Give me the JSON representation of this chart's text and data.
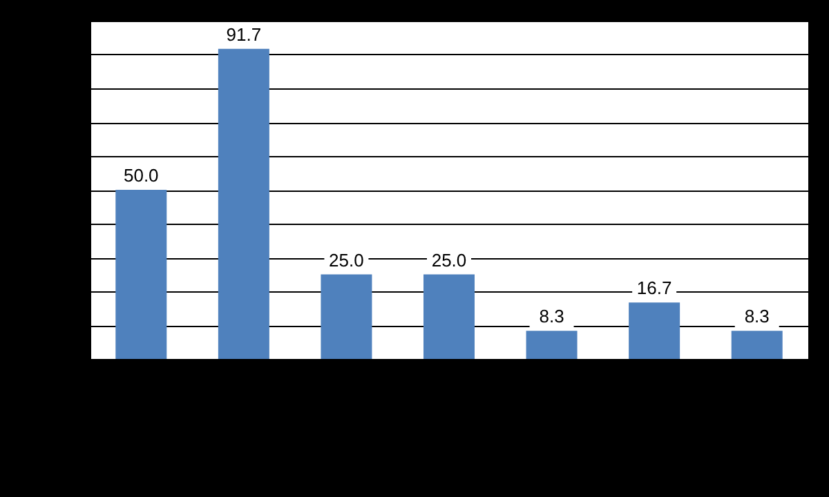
{
  "chart_data": {
    "type": "bar",
    "categories": [
      null,
      null,
      null,
      null,
      null,
      null,
      null
    ],
    "values": [
      50.0,
      91.7,
      25.0,
      25.0,
      8.3,
      16.7,
      8.3
    ],
    "value_labels": [
      "50.0",
      "91.7",
      "25.0",
      "25.0",
      "8.3",
      "16.7",
      "8.3"
    ],
    "color": "#4f81bd",
    "ylim": [
      0,
      100
    ],
    "yticks": [
      {
        "value": 0,
        "label": null
      },
      {
        "value": 10,
        "label": null
      },
      {
        "value": 20,
        "label": null
      },
      {
        "value": 30,
        "label": null
      },
      {
        "value": 40,
        "label": null
      },
      {
        "value": 50,
        "label": null
      },
      {
        "value": 60,
        "label": null
      },
      {
        "value": 70,
        "label": null
      },
      {
        "value": 80,
        "label": null
      },
      {
        "value": 90,
        "label": null
      },
      {
        "value": 100,
        "label": null
      }
    ],
    "grid": "y",
    "tick_labels": false
  }
}
